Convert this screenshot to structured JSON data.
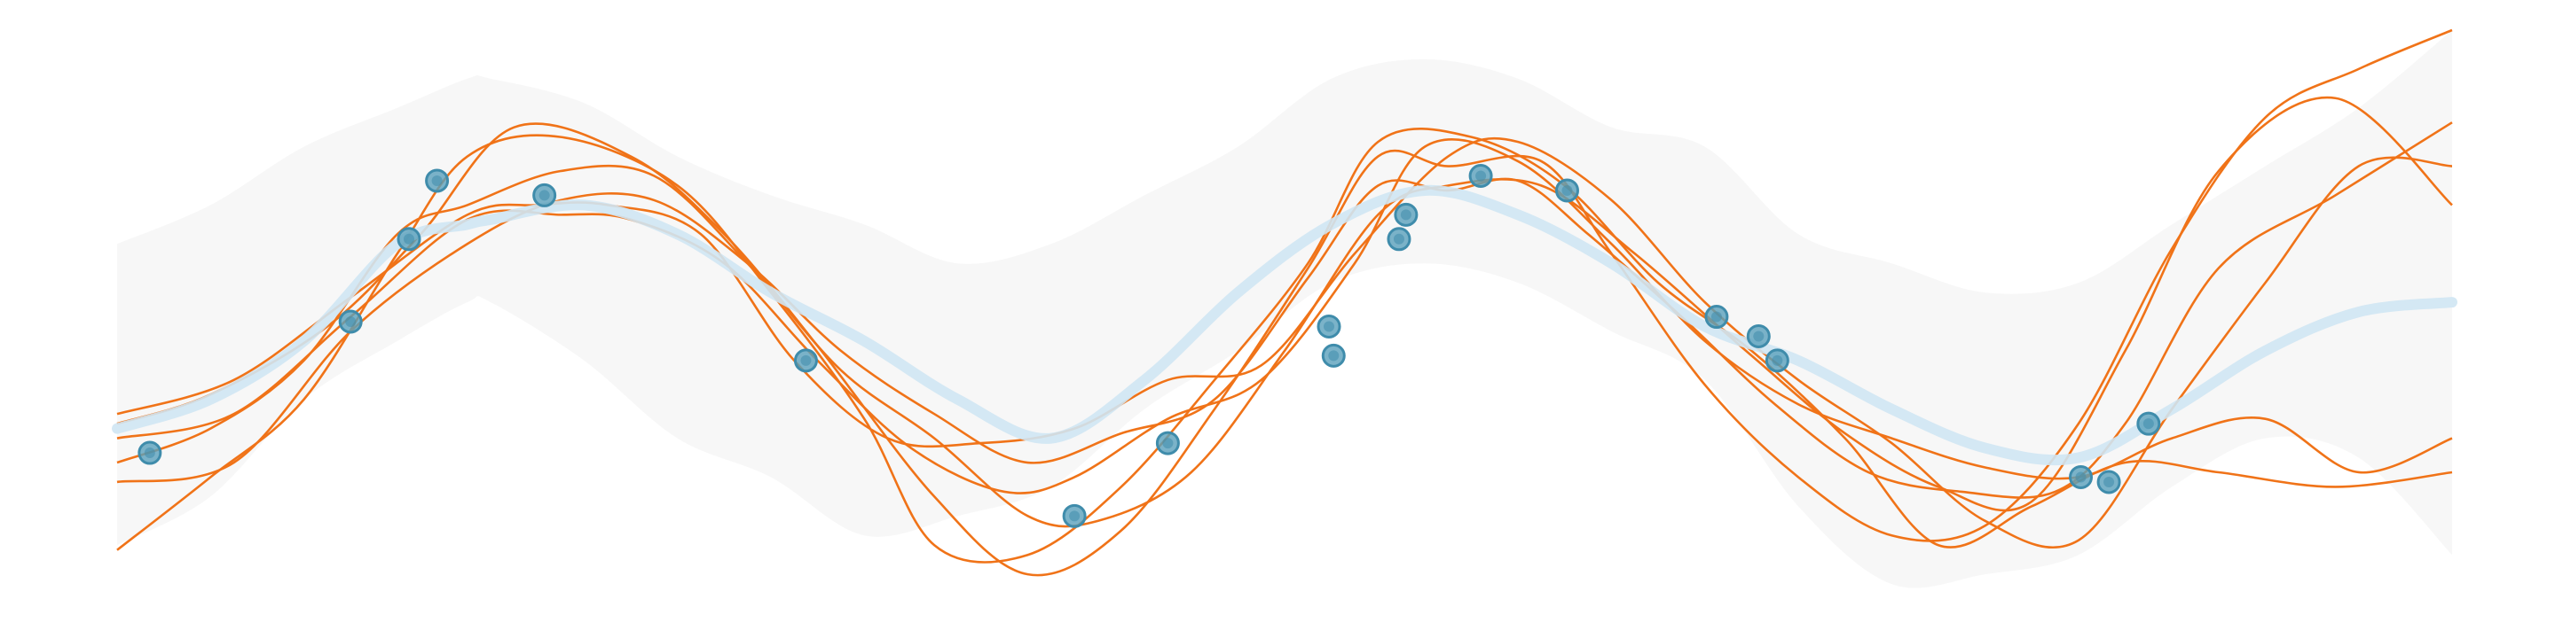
{
  "chart_data": {
    "type": "line",
    "title": "",
    "xlabel": "",
    "ylabel": "",
    "xlim": [
      0,
      100
    ],
    "ylim": [
      -3,
      3
    ],
    "grid": false,
    "legend": "none",
    "colors": {
      "band": "#f7f7f7",
      "mean": "#cfe6f3",
      "samples": "#f07318",
      "points_fill": "#5aa0bb",
      "points_stroke": "#3f8cab"
    },
    "confidence_band": {
      "x": [
        0,
        4,
        8,
        12,
        15,
        16,
        20,
        24,
        28,
        32,
        36,
        40,
        44,
        48,
        52,
        56,
        60,
        64,
        68,
        72,
        76,
        80,
        84,
        88,
        92,
        96,
        100
      ],
      "upper": [
        0.8,
        1.2,
        1.8,
        2.2,
        2.5,
        2.5,
        2.25,
        1.7,
        1.3,
        1.0,
        0.6,
        0.8,
        1.3,
        1.8,
        2.5,
        2.7,
        2.5,
        2.0,
        1.8,
        0.9,
        0.6,
        0.3,
        0.4,
        1.0,
        1.6,
        2.2,
        3.0
      ],
      "lower": [
        -2.3,
        -1.8,
        -0.8,
        -0.2,
        0.2,
        0.2,
        -0.4,
        -1.2,
        -1.6,
        -2.2,
        -2.0,
        -1.7,
        -0.9,
        -0.3,
        0.4,
        0.6,
        0.4,
        -0.1,
        -0.6,
        -1.9,
        -2.7,
        -2.6,
        -2.4,
        -1.7,
        -1.2,
        -1.4,
        -2.4
      ]
    },
    "mean": {
      "x": [
        0,
        4,
        8,
        12,
        15,
        16,
        20,
        24,
        28,
        32,
        36,
        40,
        44,
        48,
        52,
        56,
        60,
        64,
        68,
        72,
        76,
        80,
        84,
        88,
        92,
        96,
        100
      ],
      "y": [
        -1.1,
        -0.8,
        -0.2,
        0.8,
        1.0,
        1.05,
        1.2,
        0.9,
        0.3,
        -0.2,
        -0.8,
        -1.2,
        -0.6,
        0.3,
        1.0,
        1.35,
        1.1,
        0.6,
        -0.05,
        -0.4,
        -0.9,
        -1.3,
        -1.4,
        -0.9,
        -0.3,
        0.1,
        0.2
      ]
    },
    "observations": {
      "x": [
        1.4,
        10.0,
        12.5,
        13.7,
        18.3,
        29.5,
        41.0,
        45.0,
        51.9,
        52.1,
        54.9,
        55.2,
        58.4,
        62.1,
        68.5,
        70.3,
        71.1,
        84.1,
        85.3,
        87.0
      ],
      "y": [
        -1.35,
        0.0,
        0.85,
        1.45,
        1.3,
        -0.4,
        -2.0,
        -1.25,
        -0.05,
        -0.35,
        0.85,
        1.1,
        1.5,
        1.35,
        0.05,
        -0.15,
        -0.4,
        -1.6,
        -1.65,
        -1.05
      ]
    },
    "samples": [
      {
        "x": [
          0,
          5,
          10,
          15,
          19,
          22,
          26,
          30,
          34,
          38,
          41,
          45,
          49,
          53,
          56,
          60,
          64,
          68,
          72,
          76,
          80,
          84,
          88,
          92,
          96,
          100
        ],
        "y": [
          -1.2,
          -0.95,
          0.05,
          1.05,
          1.1,
          1.05,
          0.6,
          -0.4,
          -1.3,
          -1.75,
          -1.6,
          -1.0,
          -0.6,
          0.6,
          1.8,
          1.65,
          0.8,
          -0.2,
          -0.85,
          -1.2,
          -1.5,
          -1.6,
          -1.2,
          -1.0,
          -1.55,
          -1.2
        ]
      },
      {
        "x": [
          0,
          5,
          10,
          15,
          18,
          21,
          25,
          29,
          33,
          37,
          41,
          45,
          49,
          53,
          57,
          60,
          64,
          68,
          72,
          76,
          80,
          84,
          88,
          92,
          96,
          100
        ],
        "y": [
          -0.95,
          -0.6,
          0.25,
          1.1,
          1.2,
          1.2,
          0.9,
          -0.4,
          -1.2,
          -1.25,
          -1.1,
          -0.6,
          -0.45,
          0.7,
          1.7,
          1.85,
          1.25,
          0.2,
          -0.6,
          -1.25,
          -2.05,
          -2.25,
          -0.9,
          0.4,
          1.6,
          1.6
        ]
      },
      {
        "x": [
          0,
          4,
          8,
          12,
          15,
          19,
          23,
          27,
          31,
          35,
          39,
          42,
          46,
          50,
          54,
          57,
          61,
          65,
          70,
          74,
          78,
          82,
          86,
          90,
          95,
          100
        ],
        "y": [
          -1.45,
          -1.1,
          -0.4,
          0.9,
          1.2,
          1.55,
          1.5,
          0.6,
          -0.5,
          -1.2,
          -2.0,
          -2.05,
          -1.55,
          -0.3,
          1.1,
          1.4,
          1.4,
          0.7,
          -0.35,
          -1.15,
          -1.7,
          -1.85,
          -0.3,
          1.55,
          2.3,
          1.2
        ]
      },
      {
        "x": [
          0,
          4,
          8,
          12,
          15,
          19,
          24,
          28,
          32,
          35,
          39,
          43,
          47,
          51,
          54,
          58,
          62,
          66,
          70,
          74,
          78,
          82,
          86,
          90,
          95,
          100
        ],
        "y": [
          -2.35,
          -1.6,
          -0.8,
          0.7,
          1.7,
          1.9,
          1.4,
          0.3,
          -1.0,
          -2.3,
          -2.4,
          -1.7,
          -0.6,
          0.6,
          1.85,
          1.9,
          1.4,
          0.4,
          -0.3,
          -1.2,
          -2.3,
          -1.9,
          -1.45,
          -1.55,
          -1.7,
          -1.55
        ]
      },
      {
        "x": [
          0,
          5,
          10,
          15,
          19,
          23,
          27,
          31,
          35,
          39,
          43,
          47,
          51,
          54,
          57,
          60,
          63,
          67,
          71,
          75,
          79,
          83,
          86,
          90,
          95,
          100
        ],
        "y": [
          -1.65,
          -1.45,
          -0.1,
          0.8,
          1.25,
          1.25,
          0.6,
          -0.3,
          -0.95,
          -1.45,
          -1.15,
          -0.8,
          0.45,
          1.4,
          1.35,
          1.45,
          0.9,
          0.05,
          -0.85,
          -1.55,
          -1.75,
          -1.75,
          -1.05,
          0.55,
          1.3,
          2.05
        ]
      },
      {
        "x": [
          0,
          4,
          9,
          13,
          17,
          22,
          26,
          30,
          35,
          39,
          43,
          47,
          51,
          54,
          57,
          61,
          64,
          68,
          72,
          76,
          80,
          84,
          88,
          92,
          96,
          100
        ],
        "y": [
          -1.05,
          -0.75,
          -0.05,
          0.9,
          2.0,
          1.7,
          0.9,
          -0.25,
          -1.8,
          -2.6,
          -2.15,
          -0.9,
          0.55,
          1.7,
          1.6,
          1.65,
          0.7,
          -0.65,
          -1.6,
          -2.2,
          -2.1,
          -1.05,
          0.75,
          2.1,
          2.6,
          3.0
        ]
      }
    ]
  }
}
